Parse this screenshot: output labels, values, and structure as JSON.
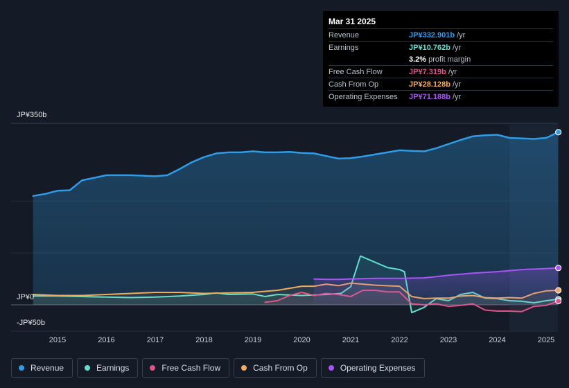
{
  "tooltip": {
    "date": "Mar 31 2025",
    "rows": [
      {
        "label": "Revenue",
        "value": "JP¥332.901b",
        "unit": "/yr",
        "color": "#2e9ce8"
      },
      {
        "label": "Earnings",
        "value": "JP¥10.762b",
        "unit": "/yr",
        "color": "#5fe0cf"
      },
      {
        "label": "",
        "value": "3.2%",
        "unit": "profit margin",
        "color": "#ffffff"
      },
      {
        "label": "Free Cash Flow",
        "value": "JP¥7.319b",
        "unit": "/yr",
        "color": "#e0528a"
      },
      {
        "label": "Cash From Op",
        "value": "JP¥28.128b",
        "unit": "/yr",
        "color": "#f0ac5c"
      },
      {
        "label": "Operating Expenses",
        "value": "JP¥71.188b",
        "unit": "/yr",
        "color": "#a855f7"
      }
    ]
  },
  "chart_data": {
    "type": "area",
    "y_axis_labels": {
      "top": "JP¥350b",
      "zero": "JP¥0",
      "bottom": "-JP¥50b"
    },
    "ylim": [
      -50,
      350
    ],
    "x_ticks": [
      "2015",
      "2016",
      "2017",
      "2018",
      "2019",
      "2020",
      "2021",
      "2022",
      "2023",
      "2024",
      "2025"
    ],
    "xlim": [
      2014.45,
      2025.3
    ],
    "forecast_shading_from": 2024.25,
    "series": [
      {
        "name": "Revenue",
        "color": "#2e9ce8",
        "filled": true,
        "points": [
          [
            2014.5,
            210
          ],
          [
            2014.75,
            214
          ],
          [
            2015.0,
            220
          ],
          [
            2015.25,
            221
          ],
          [
            2015.5,
            240
          ],
          [
            2015.75,
            245
          ],
          [
            2016.0,
            250
          ],
          [
            2016.5,
            250
          ],
          [
            2017.0,
            248
          ],
          [
            2017.25,
            250
          ],
          [
            2017.5,
            262
          ],
          [
            2017.75,
            275
          ],
          [
            2018.0,
            285
          ],
          [
            2018.25,
            292
          ],
          [
            2018.5,
            294
          ],
          [
            2018.75,
            294
          ],
          [
            2019.0,
            296
          ],
          [
            2019.25,
            294
          ],
          [
            2019.5,
            294
          ],
          [
            2019.75,
            295
          ],
          [
            2020.0,
            293
          ],
          [
            2020.25,
            292
          ],
          [
            2020.5,
            287
          ],
          [
            2020.75,
            282
          ],
          [
            2021.0,
            283
          ],
          [
            2021.25,
            286
          ],
          [
            2021.5,
            290
          ],
          [
            2021.75,
            294
          ],
          [
            2022.0,
            298
          ],
          [
            2022.25,
            297
          ],
          [
            2022.5,
            296
          ],
          [
            2022.75,
            302
          ],
          [
            2023.0,
            310
          ],
          [
            2023.25,
            318
          ],
          [
            2023.5,
            325
          ],
          [
            2023.75,
            327
          ],
          [
            2024.0,
            328
          ],
          [
            2024.25,
            322
          ],
          [
            2024.5,
            321
          ],
          [
            2024.75,
            320
          ],
          [
            2025.0,
            322
          ],
          [
            2025.25,
            332.9
          ]
        ]
      },
      {
        "name": "Earnings",
        "color": "#5fe0cf",
        "filled": false,
        "points": [
          [
            2014.5,
            17
          ],
          [
            2015.0,
            17
          ],
          [
            2015.5,
            16
          ],
          [
            2016.0,
            15
          ],
          [
            2016.5,
            14
          ],
          [
            2017.0,
            15
          ],
          [
            2017.5,
            17
          ],
          [
            2018.0,
            20
          ],
          [
            2018.25,
            23
          ],
          [
            2018.5,
            20
          ],
          [
            2019.0,
            21
          ],
          [
            2019.25,
            16
          ],
          [
            2019.5,
            20
          ],
          [
            2020.0,
            18
          ],
          [
            2020.5,
            20
          ],
          [
            2020.8,
            22
          ],
          [
            2021.0,
            35
          ],
          [
            2021.2,
            94
          ],
          [
            2021.5,
            82
          ],
          [
            2021.75,
            72
          ],
          [
            2022.0,
            68
          ],
          [
            2022.1,
            64
          ],
          [
            2022.25,
            -15
          ],
          [
            2022.5,
            -5
          ],
          [
            2022.75,
            12
          ],
          [
            2023.0,
            8
          ],
          [
            2023.25,
            20
          ],
          [
            2023.5,
            24
          ],
          [
            2023.75,
            13
          ],
          [
            2024.0,
            12
          ],
          [
            2024.25,
            8
          ],
          [
            2024.5,
            7
          ],
          [
            2024.75,
            4
          ],
          [
            2025.0,
            8
          ],
          [
            2025.25,
            10.8
          ]
        ]
      },
      {
        "name": "Free Cash Flow",
        "color": "#e0528a",
        "filled": false,
        "points": [
          [
            2019.25,
            5
          ],
          [
            2019.5,
            8
          ],
          [
            2019.75,
            18
          ],
          [
            2020.0,
            24
          ],
          [
            2020.25,
            18
          ],
          [
            2020.5,
            22
          ],
          [
            2020.75,
            20
          ],
          [
            2021.0,
            16
          ],
          [
            2021.25,
            28
          ],
          [
            2021.5,
            28
          ],
          [
            2021.75,
            25
          ],
          [
            2022.0,
            25
          ],
          [
            2022.25,
            2
          ],
          [
            2022.5,
            0
          ],
          [
            2022.75,
            2
          ],
          [
            2023.0,
            -3
          ],
          [
            2023.25,
            -1
          ],
          [
            2023.5,
            2
          ],
          [
            2023.75,
            -10
          ],
          [
            2024.0,
            -12
          ],
          [
            2024.25,
            -12
          ],
          [
            2024.5,
            -13
          ],
          [
            2024.75,
            -3
          ],
          [
            2025.0,
            -1
          ],
          [
            2025.25,
            7.3
          ]
        ]
      },
      {
        "name": "Cash From Op",
        "color": "#f0ac5c",
        "filled": false,
        "points": [
          [
            2014.5,
            20
          ],
          [
            2015.0,
            18
          ],
          [
            2015.5,
            18
          ],
          [
            2016.0,
            20
          ],
          [
            2016.5,
            22
          ],
          [
            2017.0,
            24
          ],
          [
            2017.5,
            24
          ],
          [
            2018.0,
            22
          ],
          [
            2018.5,
            23
          ],
          [
            2019.0,
            24
          ],
          [
            2019.5,
            28
          ],
          [
            2020.0,
            36
          ],
          [
            2020.25,
            36
          ],
          [
            2020.5,
            40
          ],
          [
            2020.75,
            37
          ],
          [
            2021.0,
            42
          ],
          [
            2021.5,
            38
          ],
          [
            2022.0,
            36
          ],
          [
            2022.25,
            16
          ],
          [
            2022.5,
            12
          ],
          [
            2022.75,
            13
          ],
          [
            2023.0,
            13
          ],
          [
            2023.25,
            17
          ],
          [
            2023.5,
            18
          ],
          [
            2023.75,
            14
          ],
          [
            2024.0,
            13
          ],
          [
            2024.25,
            14
          ],
          [
            2024.5,
            13
          ],
          [
            2024.75,
            22
          ],
          [
            2025.0,
            27
          ],
          [
            2025.25,
            28.1
          ]
        ]
      },
      {
        "name": "Operating Expenses",
        "color": "#a855f7",
        "filled": true,
        "points": [
          [
            2020.25,
            50
          ],
          [
            2020.5,
            49
          ],
          [
            2020.75,
            49
          ],
          [
            2021.0,
            50
          ],
          [
            2021.5,
            51
          ],
          [
            2022.0,
            51
          ],
          [
            2022.5,
            52
          ],
          [
            2023.0,
            57
          ],
          [
            2023.5,
            61
          ],
          [
            2024.0,
            64
          ],
          [
            2024.5,
            68
          ],
          [
            2025.0,
            70
          ],
          [
            2025.25,
            71.2
          ]
        ]
      }
    ]
  },
  "legend": [
    {
      "label": "Revenue",
      "color": "#2e9ce8"
    },
    {
      "label": "Earnings",
      "color": "#5fe0cf"
    },
    {
      "label": "Free Cash Flow",
      "color": "#e0528a"
    },
    {
      "label": "Cash From Op",
      "color": "#f0ac5c"
    },
    {
      "label": "Operating Expenses",
      "color": "#a855f7"
    }
  ]
}
